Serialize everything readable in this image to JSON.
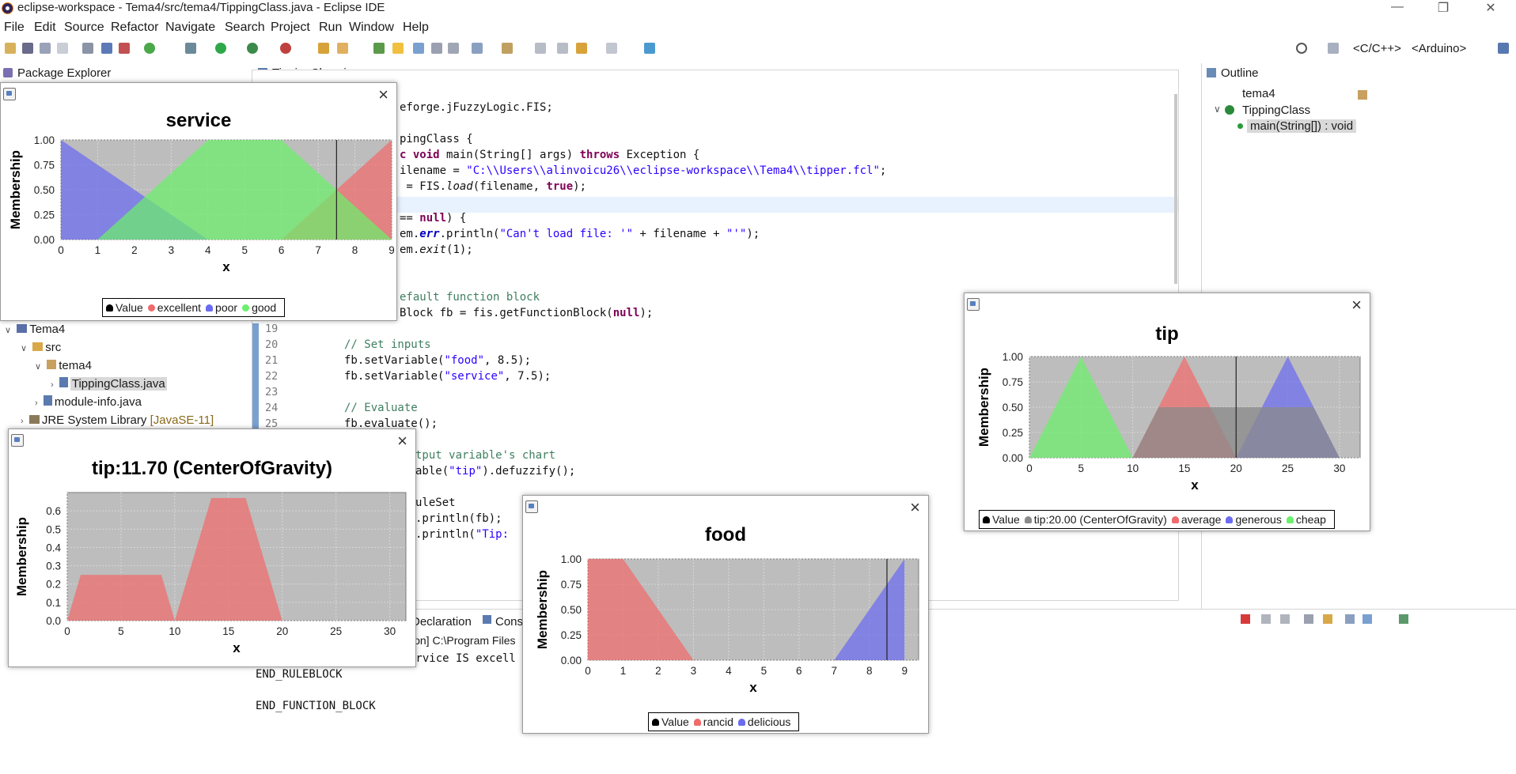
{
  "app": {
    "window_title": "eclipse-workspace - Tema4/src/tema4/TippingClass.java - Eclipse IDE",
    "menu": [
      "File",
      "Edit",
      "Source",
      "Refactor",
      "Navigate",
      "Search",
      "Project",
      "Run",
      "Window",
      "Help"
    ],
    "perspectives": [
      "<C/C++>",
      "<Arduino>"
    ]
  },
  "package_explorer": {
    "title": "Package Explorer",
    "items": [
      "Tema4",
      "src",
      "tema4",
      "TippingClass.java",
      "module-info.java"
    ],
    "jre_label": "JRE System Library",
    "jre_version": "[JavaSE-11]"
  },
  "editor": {
    "tab": "TippingClass.java",
    "line_numbers": [
      "19",
      "20",
      "21",
      "22",
      "23",
      "24",
      "25"
    ],
    "code": {
      "l1a": "eforge.jFuzzyLogic.FIS;",
      "l2a": "pingClass {",
      "l3a": "c ",
      "l3b": "void",
      "l3c": " main(String[] args) ",
      "l3d": "throws",
      "l3e": " Exception {",
      "l4a": "ilename = ",
      "l4b": "\"C:\\\\Users\\\\alinvoicu26\\\\eclipse-workspace\\\\Tema4\\\\tipper.fcl\"",
      "l4c": ";",
      "l5a": " = FIS.",
      "l5b": "load",
      "l5c": "(filename, ",
      "l5d": "true",
      "l5e": ");",
      "l6a": "== ",
      "l6b": "null",
      "l6c": ") {",
      "l7a": "em.",
      "l7b": "err",
      "l7c": ".println(",
      "l7d": "\"Can't load file: '\"",
      "l7e": " + filename + ",
      "l7f": "\"'\"",
      "l7g": ");",
      "l8a": "em.",
      "l8b": "exit",
      "l8c": "(1);",
      "l9": "efault function block",
      "l10a": "Block fb = fis.getFunctionBlock(",
      "l10b": "null",
      "l10c": ");",
      "l11": "// Set inputs",
      "l12a": "fb.setVariable(",
      "l12b": "\"food\"",
      "l12c": ", 8.5);",
      "l13a": "fb.setVariable(",
      "l13b": "\"service\"",
      "l13c": ", 7.5);",
      "l14": "// Evaluate",
      "l15": "fb.evaluate();",
      "l16": "tput variable's chart",
      "l17a": "able(",
      "l17b": "\"tip\"",
      "l17c": ").defuzzify();",
      "l18": "uleSet",
      "l19": ".println(fb);",
      "l20a": ".println(",
      "l20b": "\"Tip:"
    }
  },
  "bottom_panel": {
    "tab_declaration": "Declaration",
    "tab_console": "Conso",
    "console_header": "ion] C:\\Program Files",
    "console_lines": [
      "ervice IS excell",
      "END_RULEBLOCK",
      "END_FUNCTION_BLOCK"
    ]
  },
  "outline": {
    "title": "Outline",
    "items": [
      "tema4",
      "TippingClass",
      "main(String[]) : void"
    ]
  },
  "chart_data": [
    {
      "type": "area",
      "title": "service",
      "xlabel": "x",
      "ylabel": "Membership",
      "xlim": [
        0,
        9
      ],
      "ylim": [
        0,
        1
      ],
      "x_ticks": [
        "0",
        "1",
        "2",
        "3",
        "4",
        "5",
        "6",
        "7",
        "8",
        "9"
      ],
      "y_ticks": [
        "0.00",
        "0.25",
        "0.50",
        "0.75",
        "1.00"
      ],
      "value_line": 7.5,
      "series": [
        {
          "name": "excellent",
          "color": "#f06b6b",
          "points": [
            [
              6,
              0
            ],
            [
              9,
              1
            ],
            [
              9,
              0
            ]
          ]
        },
        {
          "name": "poor",
          "color": "#6b6bf0",
          "points": [
            [
              0,
              1
            ],
            [
              4,
              0
            ]
          ]
        },
        {
          "name": "good",
          "color": "#6bf06b",
          "points": [
            [
              1,
              0
            ],
            [
              4,
              1
            ],
            [
              6,
              1
            ],
            [
              9,
              0
            ]
          ]
        }
      ],
      "legend": [
        {
          "name": "Value",
          "color": "#000000"
        },
        {
          "name": "excellent",
          "color": "#f06b6b"
        },
        {
          "name": "poor",
          "color": "#6b6bf0"
        },
        {
          "name": "good",
          "color": "#6bf06b"
        }
      ]
    },
    {
      "type": "area",
      "title": "tip",
      "xlabel": "x",
      "ylabel": "Membership",
      "xlim": [
        0,
        32
      ],
      "ylim": [
        0,
        1
      ],
      "x_ticks": [
        "0",
        "5",
        "10",
        "15",
        "20",
        "25",
        "30"
      ],
      "y_ticks": [
        "0.00",
        "0.25",
        "0.50",
        "0.75",
        "1.00"
      ],
      "value_line": 20,
      "series": [
        {
          "name": "cheap",
          "color": "#6bf06b",
          "points": [
            [
              0,
              0
            ],
            [
              5,
              1
            ],
            [
              10,
              0
            ]
          ]
        },
        {
          "name": "average",
          "color": "#f06b6b",
          "points": [
            [
              10,
              0
            ],
            [
              15,
              1
            ],
            [
              20,
              0
            ]
          ]
        },
        {
          "name": "generous",
          "color": "#6b6bf0",
          "points": [
            [
              20,
              0
            ],
            [
              25,
              1
            ],
            [
              30,
              0
            ]
          ]
        },
        {
          "name": "tip:20.00 (CenterOfGravity)",
          "color": "#8a8a8a",
          "points": [
            [
              10,
              0
            ],
            [
              12.5,
              0.5
            ],
            [
              27.5,
              0.5
            ],
            [
              30,
              0
            ]
          ]
        }
      ],
      "legend": [
        {
          "name": "Value",
          "color": "#000000"
        },
        {
          "name": "tip:20.00 (CenterOfGravity)",
          "color": "#8a8a8a"
        },
        {
          "name": "average",
          "color": "#f06b6b"
        },
        {
          "name": "generous",
          "color": "#6b6bf0"
        },
        {
          "name": "cheap",
          "color": "#6bf06b"
        }
      ]
    },
    {
      "type": "area",
      "title": "tip:11.70 (CenterOfGravity)",
      "xlabel": "x",
      "ylabel": "Membership",
      "xlim": [
        0,
        31.5
      ],
      "ylim": [
        0,
        0.7
      ],
      "x_ticks": [
        "0",
        "5",
        "10",
        "15",
        "20",
        "25",
        "30"
      ],
      "y_ticks": [
        "0.0",
        "0.1",
        "0.2",
        "0.3",
        "0.4",
        "0.5",
        "0.6"
      ],
      "series": [
        {
          "name": "tip",
          "color": "#f06b6b",
          "points": [
            [
              0,
              0
            ],
            [
              1.25,
              0.25
            ],
            [
              8.75,
              0.25
            ],
            [
              10,
              0
            ],
            [
              13.4,
              0.67
            ],
            [
              16.6,
              0.67
            ],
            [
              20,
              0
            ]
          ]
        }
      ]
    },
    {
      "type": "area",
      "title": "food",
      "xlabel": "x",
      "ylabel": "Membership",
      "xlim": [
        0,
        9.4
      ],
      "ylim": [
        0,
        1
      ],
      "x_ticks": [
        "0",
        "1",
        "2",
        "3",
        "4",
        "5",
        "6",
        "7",
        "8",
        "9"
      ],
      "y_ticks": [
        "0.00",
        "0.25",
        "0.50",
        "0.75",
        "1.00"
      ],
      "value_line": 8.5,
      "series": [
        {
          "name": "rancid",
          "color": "#f06b6b",
          "points": [
            [
              0,
              1
            ],
            [
              1,
              1
            ],
            [
              3,
              0
            ]
          ]
        },
        {
          "name": "delicious",
          "color": "#6b6bf0",
          "points": [
            [
              7,
              0
            ],
            [
              9,
              1
            ],
            [
              9,
              0
            ]
          ]
        }
      ],
      "legend": [
        {
          "name": "Value",
          "color": "#000000"
        },
        {
          "name": "rancid",
          "color": "#f06b6b"
        },
        {
          "name": "delicious",
          "color": "#6b6bf0"
        }
      ]
    }
  ]
}
